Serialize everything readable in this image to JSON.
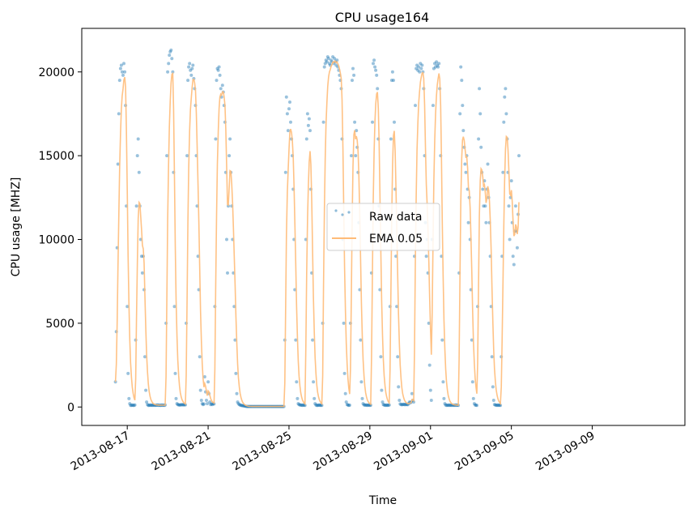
{
  "chart_data": {
    "type": "scatter",
    "title": "CPU usage164",
    "xlabel": "Time",
    "ylabel": "CPU usage [MHZ]",
    "xlim": [
      "2013-08-14T18:00",
      "2013-09-13T14:00"
    ],
    "ylim": [
      -1100,
      22600
    ],
    "x_ticks": [
      "2013-08-17",
      "2013-08-21",
      "2013-08-25",
      "2013-08-29",
      "2013-09-01",
      "2013-09-05",
      "2013-09-09"
    ],
    "y_ticks": [
      0,
      5000,
      10000,
      15000,
      20000
    ],
    "legend": {
      "placement": "center",
      "entries": [
        "Raw data",
        "EMA 0.05"
      ]
    },
    "grid": false,
    "series": [
      {
        "name": "Raw data",
        "kind": "scatter",
        "color": "#1f77b4",
        "sampling": "hourly means of the 5-minute samples (approximate reading)",
        "x_start": "2013-08-16T10:00",
        "x_step_hours": 1,
        "y": [
          1500,
          4500,
          9500,
          14500,
          17500,
          19500,
          20200,
          20400,
          20000,
          19800,
          20500,
          20000,
          18000,
          12000,
          6000,
          2000,
          500,
          200,
          100,
          100,
          120,
          100,
          100,
          120,
          4000,
          12000,
          15000,
          16000,
          14000,
          12000,
          10000,
          9000,
          8000,
          9000,
          7000,
          3000,
          1000,
          300,
          150,
          100,
          100,
          120,
          100,
          110,
          100,
          120,
          100,
          110,
          100,
          110,
          120,
          100,
          110,
          100,
          100,
          120,
          100,
          110,
          100,
          120,
          5000,
          15000,
          20000,
          20500,
          21000,
          21200,
          21300,
          20800,
          20000,
          14000,
          6000,
          2000,
          500,
          200,
          150,
          130,
          120,
          120,
          140,
          130,
          150,
          120,
          140,
          130,
          5000,
          15000,
          19500,
          20300,
          20500,
          20100,
          19800,
          20200,
          20400,
          19600,
          19000,
          18000,
          15000,
          12000,
          9000,
          7000,
          3000,
          1000,
          400,
          200,
          150,
          180,
          1800,
          900,
          400,
          200,
          1500,
          800,
          300,
          150,
          180,
          150,
          200,
          180,
          6000,
          16000,
          19500,
          20200,
          20100,
          20300,
          19800,
          19000,
          18500,
          19200,
          18800,
          18000,
          17000,
          14000,
          10000,
          8000,
          12000,
          15000,
          16000,
          14000,
          12000,
          10000,
          8000,
          6000,
          4000,
          2000,
          800,
          300,
          200,
          150,
          120,
          100,
          90,
          80,
          70,
          60,
          50,
          40,
          30,
          30,
          30,
          30,
          30,
          30,
          30,
          30,
          30,
          30,
          30,
          30,
          30,
          30,
          30,
          30,
          30,
          30,
          30,
          30,
          30,
          30,
          30,
          30,
          30,
          30,
          30,
          30,
          30,
          30,
          30,
          30,
          30,
          30,
          30,
          30,
          30,
          30,
          30,
          30,
          30,
          30,
          30,
          30,
          30,
          4000,
          14000,
          18500,
          17500,
          16500,
          17800,
          18200,
          17000,
          16000,
          15000,
          13000,
          10000,
          7000,
          4000,
          1500,
          500,
          200,
          150,
          120,
          120,
          110,
          100,
          120,
          110,
          100,
          10000,
          16000,
          17500,
          16800,
          17200,
          16500,
          13000,
          8000,
          4000,
          1500,
          500,
          200,
          120,
          100,
          100,
          110,
          120,
          100,
          110,
          100,
          5000,
          17000,
          20300,
          20500,
          20700,
          20600,
          20900,
          20800,
          20500,
          20400,
          20700,
          20600,
          20900,
          20500,
          20800,
          20600,
          20400,
          20700,
          20300,
          20100,
          19800,
          19500,
          19000,
          16000,
          10000,
          5000,
          2000,
          800,
          300,
          150,
          120,
          100,
          110,
          5000,
          15000,
          19500,
          20200,
          19800,
          17000,
          15000,
          16500,
          15500,
          14000,
          11000,
          7000,
          4000,
          1500,
          500,
          200,
          130,
          120,
          110,
          120,
          100,
          110,
          120,
          100,
          110,
          8000,
          17000,
          20500,
          20700,
          20300,
          20100,
          19800,
          19000,
          16000,
          12000,
          7000,
          3000,
          1000,
          300,
          150,
          120,
          110,
          100,
          120,
          100,
          110,
          120,
          6000,
          16000,
          19500,
          20000,
          19500,
          17000,
          13000,
          9000,
          6000,
          3000,
          1200,
          400,
          180,
          150,
          140,
          150,
          160,
          150,
          140,
          160,
          150,
          140,
          200,
          300,
          250,
          300,
          800,
          400,
          300,
          9000,
          18000,
          20200,
          20400,
          20100,
          20300,
          20000,
          20500,
          20200,
          20400,
          20000,
          19000,
          15000,
          11000,
          9000,
          10000,
          8000,
          5000,
          2500,
          1000,
          400,
          10000,
          18000,
          20200,
          20500,
          20300,
          20600,
          20400,
          20300,
          20500,
          19000,
          15000,
          9000,
          4000,
          1500,
          500,
          200,
          120,
          100,
          110,
          100,
          120,
          100,
          110,
          100,
          120,
          100,
          110,
          100,
          120,
          100,
          110,
          100,
          8000,
          17500,
          20300,
          19500,
          18000,
          16500,
          15500,
          14500,
          14000,
          15000,
          13000,
          11000,
          12500,
          10000,
          7000,
          4000,
          1500,
          500,
          200,
          120,
          110,
          100,
          6000,
          16000,
          19000,
          17500,
          15500,
          14000,
          13000,
          12000,
          13500,
          12000,
          11000,
          13000,
          14500,
          12500,
          11000,
          9000,
          6000,
          3000,
          1200,
          400,
          150,
          120,
          110,
          100,
          120,
          100,
          110,
          100,
          3000,
          9000,
          14000,
          17000,
          18500,
          19000,
          17500,
          16000,
          14000,
          12000,
          10000,
          12500,
          13500,
          11000,
          9000,
          8500,
          10500,
          12000,
          10500,
          9500,
          11500,
          15000
        ]
      },
      {
        "name": "EMA 0.05",
        "kind": "line",
        "color": "#ffbb78",
        "alpha": 0.05,
        "derived_from": "Raw data"
      }
    ]
  }
}
